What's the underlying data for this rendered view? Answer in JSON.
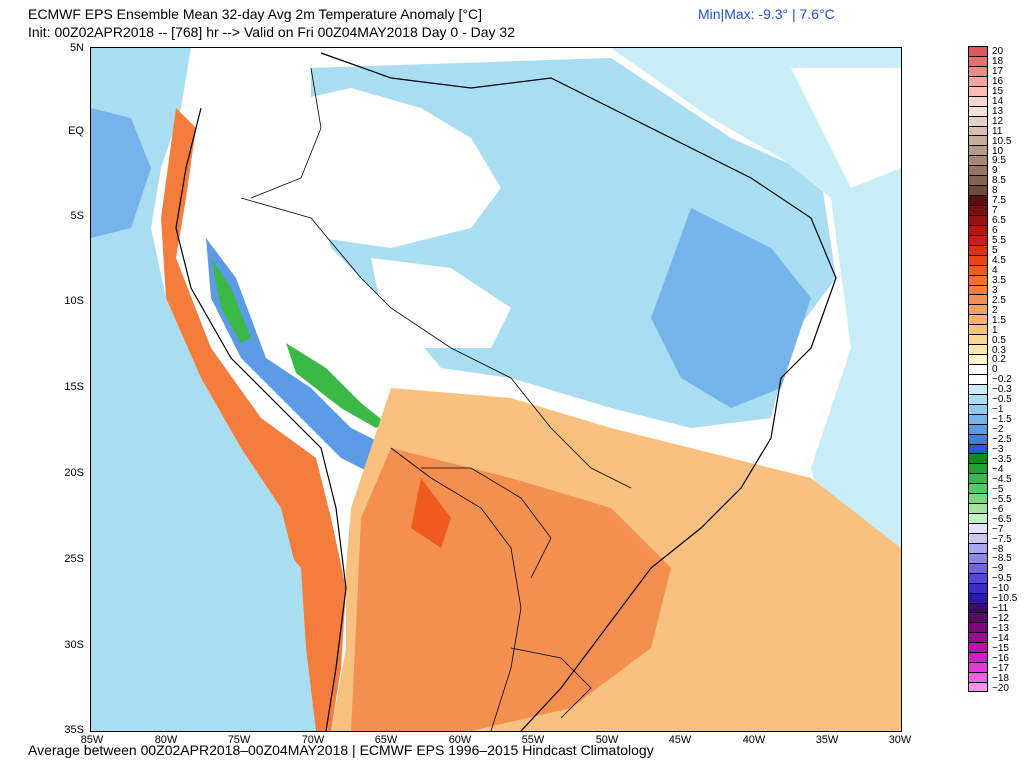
{
  "header": {
    "title": "ECMWF EPS Ensemble Mean 32-day Avg 2m Temperature Anomaly [°C]",
    "subtitle": "Init: 00Z02APR2018 -- [768] hr --> Valid on Fri 00Z04MAY2018  Day 0 - Day 32",
    "minmax": "Min|Max: -9.3° | 7.6°C",
    "footer": "Average between 00Z02APR2018–00Z04MAY2018 | ECMWF EPS 1996–2015 Hindcast Climatology"
  },
  "axes": {
    "lat_labels": [
      "5N",
      "EQ",
      "5S",
      "10S",
      "15S",
      "20S",
      "25S",
      "30S",
      "35S"
    ],
    "lon_labels": [
      "85W",
      "80W",
      "75W",
      "70W",
      "65W",
      "60W",
      "55W",
      "50W",
      "45W",
      "40W",
      "35W",
      "30W"
    ]
  },
  "colorbar": {
    "levels": [
      {
        "label": "20",
        "color": "#e0575b"
      },
      {
        "label": "18",
        "color": "#e8706f"
      },
      {
        "label": "17",
        "color": "#ee8a86"
      },
      {
        "label": "16",
        "color": "#f3a29d"
      },
      {
        "label": "15",
        "color": "#f7bcb5"
      },
      {
        "label": "14",
        "color": "#fbd5cf"
      },
      {
        "label": "13",
        "color": "#f1e2da"
      },
      {
        "label": "12",
        "color": "#e4d0c5"
      },
      {
        "label": "11",
        "color": "#d6bfb1"
      },
      {
        "label": "10.5",
        "color": "#c7ab9c"
      },
      {
        "label": "10",
        "color": "#b89887"
      },
      {
        "label": "9.5",
        "color": "#a88673"
      },
      {
        "label": "9",
        "color": "#977362"
      },
      {
        "label": "8.5",
        "color": "#846151"
      },
      {
        "label": "8",
        "color": "#6e4a3a"
      },
      {
        "label": "7.5",
        "color": "#5a0f0f"
      },
      {
        "label": "7",
        "color": "#7a1010"
      },
      {
        "label": "6.5",
        "color": "#96130f"
      },
      {
        "label": "6",
        "color": "#b2170f"
      },
      {
        "label": "5.5",
        "color": "#c8220f"
      },
      {
        "label": "5",
        "color": "#d9320f"
      },
      {
        "label": "4.5",
        "color": "#e64516"
      },
      {
        "label": "4",
        "color": "#ef5a1f"
      },
      {
        "label": "3.5",
        "color": "#f46c2e"
      },
      {
        "label": "3",
        "color": "#f47c3c"
      },
      {
        "label": "2.5",
        "color": "#f4904f"
      },
      {
        "label": "2",
        "color": "#f5a160"
      },
      {
        "label": "1.5",
        "color": "#f7b16f"
      },
      {
        "label": "1",
        "color": "#f9c17f"
      },
      {
        "label": "0.5",
        "color": "#fbd692"
      },
      {
        "label": "0.3",
        "color": "#fde8a8"
      },
      {
        "label": "0.2",
        "color": "#fff6d0"
      },
      {
        "label": "0",
        "color": "#ffffff"
      },
      {
        "label": "−0.2",
        "color": "#ffffff"
      },
      {
        "label": "−0.3",
        "color": "#c8edf6"
      },
      {
        "label": "−0.5",
        "color": "#a9def2"
      },
      {
        "label": "−1",
        "color": "#8ccbef"
      },
      {
        "label": "−1.5",
        "color": "#74b3ec"
      },
      {
        "label": "−2",
        "color": "#5b9be6"
      },
      {
        "label": "−2.5",
        "color": "#3f7fdc"
      },
      {
        "label": "−3",
        "color": "#1e5fd0"
      },
      {
        "label": "−3.5",
        "color": "#0c8a1a"
      },
      {
        "label": "−4",
        "color": "#22a32e"
      },
      {
        "label": "−4.5",
        "color": "#3bb947"
      },
      {
        "label": "−5",
        "color": "#58ca62"
      },
      {
        "label": "−5.5",
        "color": "#79d77f"
      },
      {
        "label": "−6",
        "color": "#9fe39f"
      },
      {
        "label": "−6.5",
        "color": "#c4efc2"
      },
      {
        "label": "−7",
        "color": "#e2e2f8"
      },
      {
        "label": "−7.5",
        "color": "#c8c8f2"
      },
      {
        "label": "−8",
        "color": "#aaa8ec"
      },
      {
        "label": "−8.5",
        "color": "#8c88e4"
      },
      {
        "label": "−9",
        "color": "#6f68dc"
      },
      {
        "label": "−9.5",
        "color": "#5448d2"
      },
      {
        "label": "−10",
        "color": "#3b2ec6"
      },
      {
        "label": "−10.5",
        "color": "#2a1aa8"
      },
      {
        "label": "−11",
        "color": "#3b0c6a"
      },
      {
        "label": "−12",
        "color": "#5a0a6a"
      },
      {
        "label": "−13",
        "color": "#7a0a7a"
      },
      {
        "label": "−14",
        "color": "#9a0c92"
      },
      {
        "label": "−15",
        "color": "#b814ac"
      },
      {
        "label": "−16",
        "color": "#d020c4"
      },
      {
        "label": "−17",
        "color": "#e23ad6"
      },
      {
        "label": "−18",
        "color": "#ee62e2"
      },
      {
        "label": "−20",
        "color": "#f594ee"
      }
    ]
  },
  "colors": {
    "ocean_blue": "#a9def2",
    "cold_blue": "#74b3ec",
    "warm_orange": "#f7b16f",
    "hot_orange": "#ef5a1f",
    "andes_green": "#3bb947",
    "minmax_text": "#1f4fe0"
  }
}
